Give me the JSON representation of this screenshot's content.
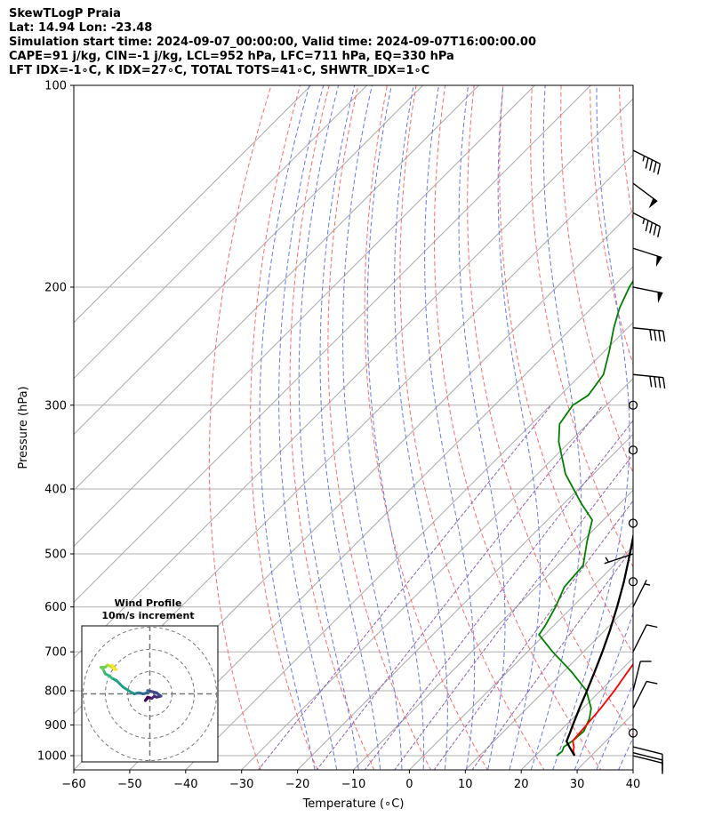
{
  "header": {
    "line1": "SkewTLogP Praia",
    "line2": "Lat: 14.94   Lon: -23.48",
    "line3": "Simulation start time: 2024-09-07_00:00:00, Valid time: 2024-09-07T16:00:00.00",
    "line4": "CAPE=91 j/kg, CIN=-1 j/kg, LCL=952 hPa, LFC=711 hPa, EQ=330 hPa",
    "line5": "LFT IDX=-1∘C, K IDX=27∘C, TOTAL TOTS=41∘C, SHWTR_IDX=1∘C"
  },
  "chart_data": [
    {
      "type": "line",
      "subtype": "skew-t log-p",
      "xlabel": "Temperature (∘C)",
      "ylabel": "Pressure (hPa)",
      "xlim": [
        -60,
        40
      ],
      "ylim": [
        1050,
        100
      ],
      "y_scale": "log",
      "x_ticks": [
        "−60",
        "−50",
        "−40",
        "−30",
        "−20",
        "−10",
        "0",
        "10",
        "20",
        "30",
        "40"
      ],
      "y_ticks": [
        "100",
        "200",
        "300",
        "400",
        "500",
        "600",
        "700",
        "800",
        "900",
        "1000"
      ],
      "grid": true,
      "colors": {
        "temperature": "#ff0000",
        "dewpoint": "#008000",
        "parcel": "#000000",
        "cape_fill": "#9fc3de",
        "dry_adiabat": "#ff6b6b",
        "moist_adiabat": "#6677ee",
        "mixing_ratio": "#9060b0",
        "isotherm": "#aaaaaa"
      },
      "series": [
        {
          "key": "temperature",
          "points": [
            [
              1000,
              27
            ],
            [
              985,
              26
            ],
            [
              970,
              25.3
            ],
            [
              950,
              24
            ],
            [
              920,
              23.8
            ],
            [
              850,
              23.2
            ],
            [
              800,
              22.5
            ],
            [
              750,
              21.5
            ],
            [
              700,
              20.5
            ],
            [
              650,
              19.2
            ],
            [
              600,
              17.6
            ],
            [
              550,
              15.6
            ],
            [
              500,
              13
            ],
            [
              450,
              9.6
            ],
            [
              400,
              5.5
            ],
            [
              350,
              0.4
            ],
            [
              330,
              -1.9
            ],
            [
              300,
              -5.5
            ],
            [
              280,
              -8.6
            ],
            [
              260,
              -12
            ],
            [
              240,
              -16
            ],
            [
              220,
              -20
            ],
            [
              200,
              -25
            ],
            [
              185,
              -28.5
            ],
            [
              170,
              -32.5
            ],
            [
              160,
              -35.3
            ],
            [
              150,
              -38.6
            ],
            [
              140,
              -42.5
            ],
            [
              130,
              -46.5
            ],
            [
              120,
              -50.3
            ],
            [
              115,
              -52.5
            ],
            [
              110,
              -54.8
            ],
            [
              105,
              -57
            ],
            [
              100,
              -59.5
            ]
          ]
        },
        {
          "key": "dewpoint",
          "points": [
            [
              1000,
              23.8
            ],
            [
              985,
              24
            ],
            [
              970,
              23.5
            ],
            [
              950,
              24
            ],
            [
              920,
              24.3
            ],
            [
              880,
              23
            ],
            [
              850,
              21.5
            ],
            [
              800,
              17.5
            ],
            [
              750,
              11.5
            ],
            [
              700,
              4.5
            ],
            [
              660,
              -1
            ],
            [
              640,
              -1.5
            ],
            [
              600,
              -3
            ],
            [
              560,
              -5
            ],
            [
              520,
              -5.5
            ],
            [
              480,
              -9
            ],
            [
              445,
              -12
            ],
            [
              420,
              -17
            ],
            [
              380,
              -25
            ],
            [
              340,
              -32
            ],
            [
              320,
              -35
            ],
            [
              300,
              -36
            ],
            [
              290,
              -35
            ],
            [
              270,
              -36
            ],
            [
              250,
              -39
            ],
            [
              230,
              -42.5
            ],
            [
              215,
              -45
            ],
            [
              200,
              -47
            ],
            [
              185,
              -48.5
            ],
            [
              170,
              -51
            ],
            [
              155,
              -54.5
            ],
            [
              140,
              -59
            ],
            [
              130,
              -62
            ],
            [
              120,
              -64.5
            ],
            [
              110,
              -66
            ],
            [
              105,
              -65.5
            ],
            [
              100,
              -65
            ]
          ]
        },
        {
          "key": "parcel",
          "points": [
            [
              1000,
              27
            ],
            [
              975,
              24.9
            ],
            [
              952,
              23
            ],
            [
              925,
              22.1
            ],
            [
              900,
              21.2
            ],
            [
              850,
              19.4
            ],
            [
              800,
              17.6
            ],
            [
              750,
              15.6
            ],
            [
              711,
              13.9
            ],
            [
              700,
              13.4
            ],
            [
              650,
              10.9
            ],
            [
              600,
              8
            ],
            [
              550,
              4.7
            ],
            [
              500,
              0.8
            ],
            [
              450,
              -3.6
            ],
            [
              400,
              -8.8
            ],
            [
              350,
              -14.9
            ],
            [
              330,
              -17.6
            ],
            [
              300,
              -22.3
            ],
            [
              250,
              -31.5
            ],
            [
              200,
              -43.6
            ],
            [
              150,
              -58.5
            ],
            [
              125,
              -68
            ],
            [
              100,
              -80.5
            ]
          ]
        }
      ],
      "wind_barbs": [
        {
          "p": 1000,
          "u": -4,
          "v": 1
        },
        {
          "p": 990,
          "u": -4,
          "v": 1
        },
        {
          "p": 970,
          "u": -4,
          "v": 1
        },
        {
          "p": 925,
          "u": 0,
          "v": 0
        },
        {
          "p": 850,
          "u": -2,
          "v": -4
        },
        {
          "p": 800,
          "u": -1,
          "v": -4
        },
        {
          "p": 700,
          "u": -2,
          "v": -4
        },
        {
          "p": 600,
          "u": -1,
          "v": -2
        },
        {
          "p": 550,
          "u": 0,
          "v": 0
        },
        {
          "p": 500,
          "u": 3,
          "v": 1
        },
        {
          "p": 450,
          "u": 0,
          "v": 0
        },
        {
          "p": 350,
          "u": 0,
          "v": 0
        },
        {
          "p": 300,
          "u": 0,
          "v": 0
        },
        {
          "p": 270,
          "u": -20,
          "v": 2
        },
        {
          "p": 230,
          "u": -20,
          "v": 2
        },
        {
          "p": 200,
          "u": -25,
          "v": 5
        },
        {
          "p": 175,
          "u": -25,
          "v": 8
        },
        {
          "p": 155,
          "u": -20,
          "v": 10
        },
        {
          "p": 140,
          "u": -20,
          "v": 15
        },
        {
          "p": 125,
          "u": -20,
          "v": 10
        }
      ]
    },
    {
      "type": "line",
      "subtype": "hodograph",
      "title": "Wind Profile",
      "subtitle": "10m/s increment",
      "ring_interval": 10,
      "colormap": "viridis",
      "points": [
        [
          -1,
          -2
        ],
        [
          -2,
          -3
        ],
        [
          -1,
          -1.5
        ],
        [
          1,
          -2
        ],
        [
          2,
          -1
        ],
        [
          3,
          -1.5
        ],
        [
          5,
          -1
        ],
        [
          3,
          0.5
        ],
        [
          1,
          1
        ],
        [
          -1,
          1.5
        ],
        [
          -1,
          0.5
        ],
        [
          -3,
          0
        ],
        [
          -5,
          0.5
        ],
        [
          -7,
          0
        ],
        [
          -8,
          0.5
        ],
        [
          -12,
          3
        ],
        [
          -15,
          6
        ],
        [
          -17,
          7
        ],
        [
          -18,
          8
        ],
        [
          -20,
          9
        ],
        [
          -21,
          11
        ],
        [
          -22,
          12
        ],
        [
          -20,
          12
        ],
        [
          -19,
          13
        ],
        [
          -17,
          12
        ],
        [
          -16,
          12
        ],
        [
          -17,
          13
        ],
        [
          -16,
          11
        ],
        [
          -15,
          11
        ]
      ]
    }
  ]
}
